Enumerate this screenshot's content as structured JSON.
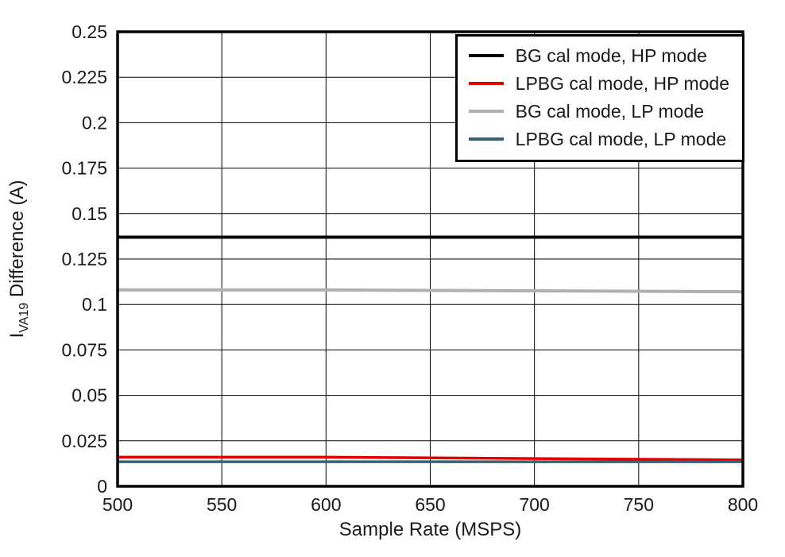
{
  "chart_data": {
    "type": "line",
    "title": "",
    "xlabel": "Sample Rate (MSPS)",
    "ylabel": {
      "base": "I",
      "sub": "VA19",
      "rest": " Difference (A)"
    },
    "xlim": [
      500,
      800
    ],
    "ylim": [
      0,
      0.25
    ],
    "x_ticks": [
      500,
      550,
      600,
      650,
      700,
      750,
      800
    ],
    "x_tick_labels": [
      "500",
      "550",
      "600",
      "650",
      "700",
      "750",
      "800"
    ],
    "y_ticks": [
      0,
      0.025,
      0.05,
      0.075,
      0.1,
      0.125,
      0.15,
      0.175,
      0.2,
      0.225,
      0.25
    ],
    "y_tick_labels": [
      "0",
      "0.025",
      "0.05",
      "0.075",
      "0.1",
      "0.125",
      "0.15",
      "0.175",
      "0.2",
      "0.225",
      "0.25"
    ],
    "grid": true,
    "legend_position": "top-right",
    "x": [
      500,
      600,
      800
    ],
    "series": [
      {
        "name": "BG cal mode, HP mode",
        "color": "#000000",
        "width": 4,
        "values": [
          0.137,
          0.137,
          0.137
        ]
      },
      {
        "name": "LPBG cal mode, HP mode",
        "color": "#e00000",
        "width": 3.5,
        "values": [
          0.016,
          0.016,
          0.0145
        ]
      },
      {
        "name": "BG cal mode, LP mode",
        "color": "#b0b0b0",
        "width": 4,
        "values": [
          0.108,
          0.108,
          0.107
        ]
      },
      {
        "name": "LPBG cal mode, LP mode",
        "color": "#3a6073",
        "width": 3.5,
        "values": [
          0.0135,
          0.0135,
          0.0135
        ]
      }
    ]
  }
}
